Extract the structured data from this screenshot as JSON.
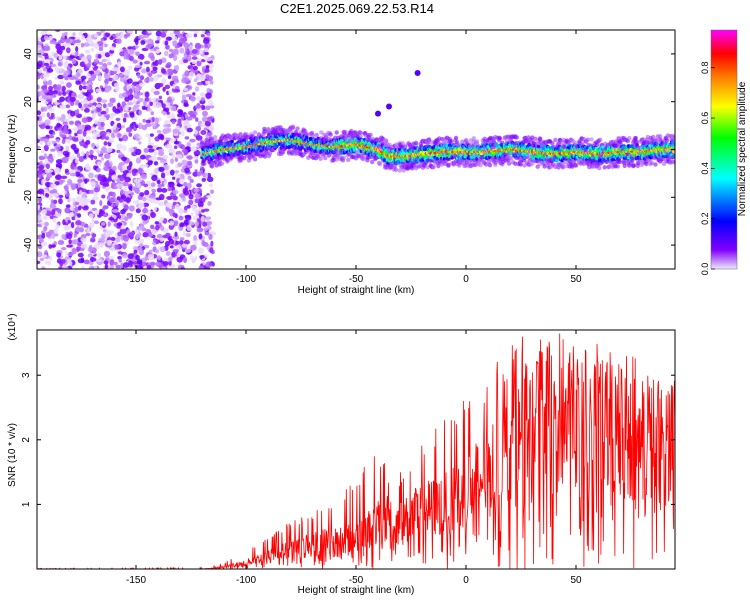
{
  "title": "C2E1.2025.069.22.53.R14",
  "chart_data": [
    {
      "type": "heatmap",
      "xlabel": "Height of straight line (km)",
      "ylabel": "Frequency (Hz)",
      "xlim": [
        -195,
        95
      ],
      "ylim": [
        -50,
        50
      ],
      "xticks": [
        -150,
        -100,
        -50,
        0,
        50
      ],
      "yticks": [
        -40,
        -20,
        0,
        20,
        40
      ],
      "colorbar": {
        "label": "Normalized spectral amplitude",
        "range": [
          0,
          0.95
        ],
        "ticks": [
          "0.0",
          "0.2",
          "0.4",
          "0.6",
          "0.8"
        ],
        "colormap": [
          "#f0e8ff",
          "#8000ff",
          "#0000ff",
          "#00ffff",
          "#00ff00",
          "#ffff00",
          "#ff8000",
          "#ff0000",
          "#ff00ff"
        ]
      },
      "noise_region_x": [
        -195,
        -118
      ],
      "ridge": {
        "x": [
          -120,
          -110,
          -100,
          -90,
          -80,
          -70,
          -60,
          -50,
          -40,
          -35,
          -30,
          -20,
          -10,
          0,
          10,
          20,
          30,
          40,
          50,
          60,
          70,
          80,
          90,
          95
        ],
        "freq": [
          -2,
          0,
          1,
          3,
          4,
          2,
          1,
          2,
          0,
          -3,
          -3,
          -2,
          -1,
          -1,
          -1,
          0,
          -1,
          -2,
          -1,
          -2,
          -1,
          -1,
          0,
          0
        ],
        "peak_amplitude": 0.9
      },
      "isolated_points": [
        {
          "x": -40,
          "y": 15
        },
        {
          "x": -35,
          "y": 18
        },
        {
          "x": -22,
          "y": 32
        }
      ]
    },
    {
      "type": "line",
      "xlabel": "Height of straight line (km)",
      "ylabel": "SNR (10 * v/v)",
      "yscale_label": "(x10⁴)",
      "xlim": [
        -195,
        95
      ],
      "ylim": [
        0,
        3.7
      ],
      "xticks": [
        -150,
        -100,
        -50,
        0,
        50
      ],
      "yticks": [
        1,
        2,
        3
      ],
      "color": "#ff0000",
      "envelope": {
        "x": [
          -195,
          -120,
          -110,
          -100,
          -90,
          -80,
          -70,
          -60,
          -50,
          -40,
          -35,
          -30,
          -20,
          -10,
          0,
          10,
          20,
          30,
          40,
          50,
          60,
          70,
          80,
          90,
          95
        ],
        "mean": [
          0.0,
          0.0,
          0.03,
          0.1,
          0.2,
          0.3,
          0.4,
          0.45,
          0.5,
          0.7,
          0.8,
          0.7,
          0.9,
          1.0,
          1.2,
          1.5,
          1.8,
          2.2,
          2.4,
          2.3,
          2.2,
          2.1,
          2.0,
          2.0,
          2.1
        ],
        "max": [
          0.01,
          0.02,
          0.1,
          0.3,
          0.5,
          0.75,
          0.9,
          1.1,
          1.4,
          1.9,
          1.5,
          1.5,
          2.0,
          2.3,
          2.7,
          3.0,
          3.5,
          3.7,
          3.7,
          3.6,
          3.5,
          3.4,
          3.3,
          3.1,
          3.0
        ]
      }
    }
  ]
}
